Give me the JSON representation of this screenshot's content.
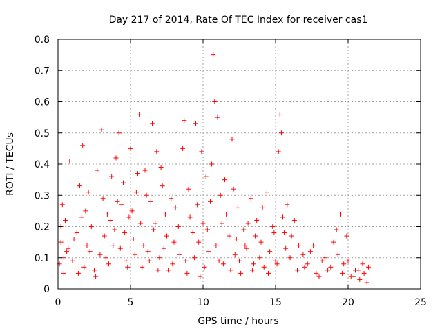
{
  "chart_data": {
    "type": "scatter",
    "title": "Day 217 of 2014, Rate Of TEC Index for receiver cas1",
    "xlabel": "GPS time / hours",
    "ylabel": "ROTI / TECUs",
    "xlim": [
      0,
      25
    ],
    "ylim": [
      0,
      0.8
    ],
    "xticks": [
      "0",
      "5",
      "10",
      "15",
      "20",
      "25"
    ],
    "yticks": [
      "0",
      "0.1",
      "0.2",
      "0.3",
      "0.4",
      "0.5",
      "0.6",
      "0.7",
      "0.8"
    ],
    "grid": true,
    "marker": "+",
    "color": "#ff0000",
    "series": [
      {
        "x": [
          0.1,
          0.2,
          0.3,
          0.4,
          0.5,
          0.6,
          0.8,
          1.0,
          1.3,
          1.5,
          1.7,
          1.8,
          1.9,
          2.0,
          2.1,
          2.3,
          2.5,
          2.7,
          2.9,
          3.0,
          3.1,
          3.2,
          3.4,
          3.5,
          3.7,
          3.9,
          4.0,
          4.2,
          4.3,
          4.4,
          4.5,
          4.7,
          4.9,
          5.0,
          5.2,
          5.4,
          5.6,
          5.7,
          5.8,
          6.0,
          6.2,
          6.4,
          6.5,
          6.6,
          6.8,
          7.0,
          7.2,
          7.4,
          7.6,
          7.8,
          8.0,
          8.3,
          8.6,
          8.7,
          8.8,
          9.0,
          9.3,
          9.5,
          9.6,
          9.8,
          10.0,
          10.2,
          10.4,
          10.7,
          10.8,
          11.0,
          11.2,
          11.4,
          11.6,
          11.8,
          12.0,
          12.2,
          12.4,
          12.6,
          12.8,
          13.0,
          13.3,
          13.5,
          13.7,
          14.0,
          14.2,
          14.4,
          14.6,
          14.8,
          15.0,
          15.2,
          15.3,
          15.4,
          15.6,
          15.8,
          16.0,
          16.3,
          16.6,
          17.0,
          17.4,
          17.8,
          18.2,
          18.6,
          19.0,
          19.3,
          19.5,
          19.7,
          19.9,
          20.2,
          20.5,
          20.8,
          21.1,
          21.4,
          0.2,
          0.4,
          0.7,
          1.1,
          1.4,
          1.6,
          2.2,
          2.6,
          3.3,
          3.6,
          3.8,
          4.1,
          4.6,
          4.8,
          5.1,
          5.3,
          5.5,
          5.9,
          6.1,
          6.3,
          6.7,
          6.9,
          7.1,
          7.3,
          7.5,
          7.9,
          8.1,
          8.4,
          8.9,
          9.1,
          9.4,
          9.7,
          9.9,
          10.1,
          10.3,
          10.5,
          10.6,
          10.9,
          11.1,
          11.3,
          11.5,
          11.9,
          12.1,
          12.3,
          12.5,
          12.9,
          13.1,
          13.4,
          13.6,
          13.9,
          14.1,
          14.5,
          14.9,
          15.1,
          15.5,
          15.7,
          16.1,
          16.5,
          16.9,
          17.2,
          17.6,
          18.0,
          18.4,
          18.8,
          19.2,
          19.6,
          20.0,
          20.4,
          20.7,
          21.0,
          21.3
        ],
        "y": [
          0.08,
          0.15,
          0.27,
          0.05,
          0.22,
          0.12,
          0.41,
          0.09,
          0.18,
          0.33,
          0.46,
          0.07,
          0.25,
          0.14,
          0.31,
          0.2,
          0.06,
          0.38,
          0.11,
          0.51,
          0.29,
          0.17,
          0.24,
          0.08,
          0.36,
          0.19,
          0.42,
          0.5,
          0.13,
          0.27,
          0.34,
          0.09,
          0.23,
          0.45,
          0.16,
          0.31,
          0.56,
          0.21,
          0.07,
          0.38,
          0.12,
          0.28,
          0.53,
          0.19,
          0.44,
          0.1,
          0.33,
          0.24,
          0.06,
          0.29,
          0.15,
          0.2,
          0.45,
          0.54,
          0.09,
          0.32,
          0.18,
          0.53,
          0.27,
          0.04,
          0.21,
          0.36,
          0.12,
          0.75,
          0.6,
          0.55,
          0.3,
          0.08,
          0.24,
          0.17,
          0.48,
          0.11,
          0.26,
          0.05,
          0.19,
          0.13,
          0.29,
          0.08,
          0.22,
          0.15,
          0.07,
          0.31,
          0.12,
          0.2,
          0.09,
          0.44,
          0.56,
          0.5,
          0.18,
          0.27,
          0.1,
          0.22,
          0.14,
          0.07,
          0.12,
          0.05,
          0.09,
          0.06,
          0.15,
          0.11,
          0.24,
          0.08,
          0.17,
          0.04,
          0.06,
          0.03,
          0.05,
          0.07,
          0.2,
          0.1,
          0.13,
          0.16,
          0.05,
          0.23,
          0.12,
          0.04,
          0.1,
          0.22,
          0.14,
          0.28,
          0.18,
          0.07,
          0.25,
          0.11,
          0.37,
          0.14,
          0.3,
          0.09,
          0.21,
          0.06,
          0.39,
          0.13,
          0.17,
          0.08,
          0.26,
          0.11,
          0.05,
          0.23,
          0.1,
          0.15,
          0.44,
          0.07,
          0.19,
          0.28,
          0.4,
          0.14,
          0.09,
          0.21,
          0.35,
          0.06,
          0.32,
          0.16,
          0.09,
          0.14,
          0.21,
          0.06,
          0.17,
          0.1,
          0.26,
          0.05,
          0.18,
          0.08,
          0.23,
          0.13,
          0.17,
          0.06,
          0.11,
          0.08,
          0.14,
          0.04,
          0.1,
          0.07,
          0.19,
          0.05,
          0.09,
          0.04,
          0.06,
          0.08,
          0.02
        ]
      }
    ]
  }
}
